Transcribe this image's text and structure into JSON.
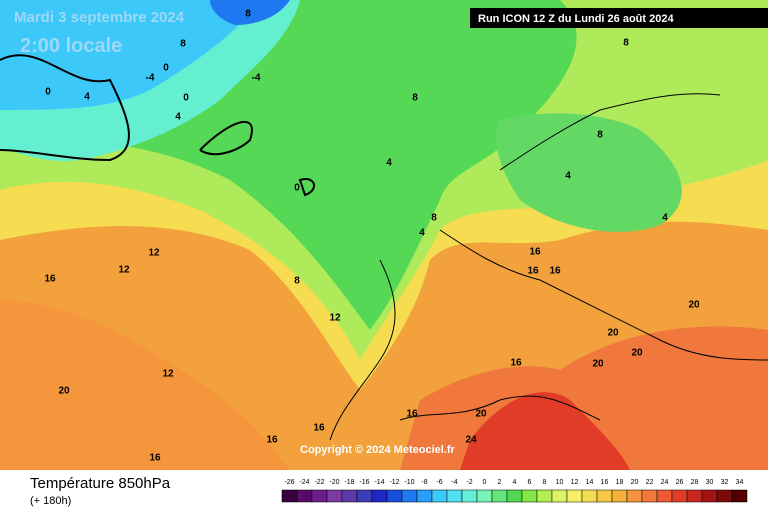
{
  "header": {
    "date": "Mardi 3 septembre 2024",
    "time": "2:00 locale",
    "run": "Run ICON 12 Z du Lundi 26 août 2024"
  },
  "copyright": "Copyright © 2024 Meteociel.fr",
  "footer": {
    "title": "Température 850hPa",
    "lead": "(+ 180h)"
  },
  "legend": {
    "ticks": [
      -26,
      -24,
      -22,
      -20,
      -18,
      -16,
      -14,
      -12,
      -10,
      -8,
      -6,
      -4,
      -2,
      0,
      2,
      4,
      6,
      8,
      10,
      12,
      14,
      16,
      18,
      20,
      22,
      24,
      26,
      28,
      30,
      32,
      34
    ],
    "colors": [
      "#3a0040",
      "#5a0a6a",
      "#6e1e8a",
      "#7c3aa0",
      "#5a3aa8",
      "#3c3cb4",
      "#1e28c8",
      "#1450dc",
      "#1e78f0",
      "#28a0f8",
      "#3cc8f8",
      "#50e0f0",
      "#64f0d8",
      "#78f4b4",
      "#64e678",
      "#50d850",
      "#82e646",
      "#b4f050",
      "#dcf564",
      "#f5f064",
      "#f5dc50",
      "#f5c846",
      "#f5af3c",
      "#f5963c",
      "#f0783c",
      "#eb5a32",
      "#e13c28",
      "#c8281e",
      "#a01414",
      "#780a0a",
      "#500000"
    ]
  },
  "contours": [
    "8",
    "8",
    "0",
    "-4",
    "0",
    "4",
    "0",
    "4",
    "-4",
    "8",
    "4",
    "0",
    "8",
    "8",
    "4",
    "8",
    "4",
    "4",
    "12",
    "12",
    "8",
    "12",
    "16",
    "16",
    "16",
    "16",
    "20",
    "20",
    "20",
    "20",
    "16",
    "12",
    "20",
    "16",
    "24",
    "16",
    "20",
    "16",
    "16"
  ]
}
